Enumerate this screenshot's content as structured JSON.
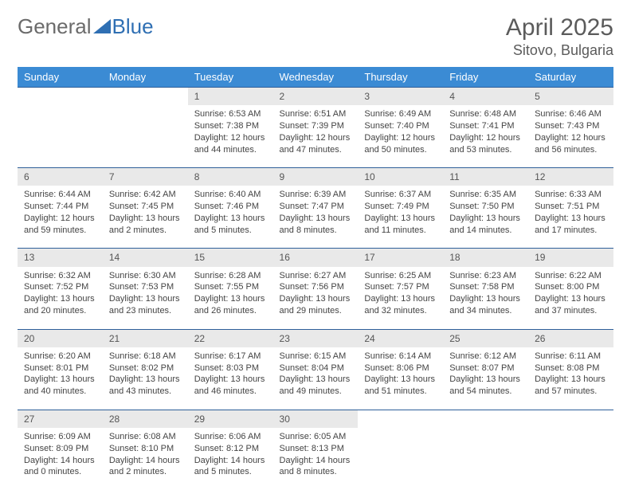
{
  "logo": {
    "part1": "General",
    "part2": "Blue",
    "color1": "#6b6b6b",
    "color2": "#2f6fb3",
    "triangle_fill": "#2f6fb3"
  },
  "header": {
    "title": "April 2025",
    "location": "Sitovo, Bulgaria"
  },
  "colors": {
    "header_bg": "#3b8bd4",
    "header_text": "#ffffff",
    "row_border": "#2e5f99",
    "daynum_bg": "#e9e9e9",
    "body_text": "#444444"
  },
  "weekdays": [
    "Sunday",
    "Monday",
    "Tuesday",
    "Wednesday",
    "Thursday",
    "Friday",
    "Saturday"
  ],
  "grid": {
    "rows": 5,
    "cols": 7,
    "leading_blanks": 2,
    "days_in_month": 30
  },
  "days": {
    "1": {
      "sunrise": "6:53 AM",
      "sunset": "7:38 PM",
      "daylight": "12 hours and 44 minutes."
    },
    "2": {
      "sunrise": "6:51 AM",
      "sunset": "7:39 PM",
      "daylight": "12 hours and 47 minutes."
    },
    "3": {
      "sunrise": "6:49 AM",
      "sunset": "7:40 PM",
      "daylight": "12 hours and 50 minutes."
    },
    "4": {
      "sunrise": "6:48 AM",
      "sunset": "7:41 PM",
      "daylight": "12 hours and 53 minutes."
    },
    "5": {
      "sunrise": "6:46 AM",
      "sunset": "7:43 PM",
      "daylight": "12 hours and 56 minutes."
    },
    "6": {
      "sunrise": "6:44 AM",
      "sunset": "7:44 PM",
      "daylight": "12 hours and 59 minutes."
    },
    "7": {
      "sunrise": "6:42 AM",
      "sunset": "7:45 PM",
      "daylight": "13 hours and 2 minutes."
    },
    "8": {
      "sunrise": "6:40 AM",
      "sunset": "7:46 PM",
      "daylight": "13 hours and 5 minutes."
    },
    "9": {
      "sunrise": "6:39 AM",
      "sunset": "7:47 PM",
      "daylight": "13 hours and 8 minutes."
    },
    "10": {
      "sunrise": "6:37 AM",
      "sunset": "7:49 PM",
      "daylight": "13 hours and 11 minutes."
    },
    "11": {
      "sunrise": "6:35 AM",
      "sunset": "7:50 PM",
      "daylight": "13 hours and 14 minutes."
    },
    "12": {
      "sunrise": "6:33 AM",
      "sunset": "7:51 PM",
      "daylight": "13 hours and 17 minutes."
    },
    "13": {
      "sunrise": "6:32 AM",
      "sunset": "7:52 PM",
      "daylight": "13 hours and 20 minutes."
    },
    "14": {
      "sunrise": "6:30 AM",
      "sunset": "7:53 PM",
      "daylight": "13 hours and 23 minutes."
    },
    "15": {
      "sunrise": "6:28 AM",
      "sunset": "7:55 PM",
      "daylight": "13 hours and 26 minutes."
    },
    "16": {
      "sunrise": "6:27 AM",
      "sunset": "7:56 PM",
      "daylight": "13 hours and 29 minutes."
    },
    "17": {
      "sunrise": "6:25 AM",
      "sunset": "7:57 PM",
      "daylight": "13 hours and 32 minutes."
    },
    "18": {
      "sunrise": "6:23 AM",
      "sunset": "7:58 PM",
      "daylight": "13 hours and 34 minutes."
    },
    "19": {
      "sunrise": "6:22 AM",
      "sunset": "8:00 PM",
      "daylight": "13 hours and 37 minutes."
    },
    "20": {
      "sunrise": "6:20 AM",
      "sunset": "8:01 PM",
      "daylight": "13 hours and 40 minutes."
    },
    "21": {
      "sunrise": "6:18 AM",
      "sunset": "8:02 PM",
      "daylight": "13 hours and 43 minutes."
    },
    "22": {
      "sunrise": "6:17 AM",
      "sunset": "8:03 PM",
      "daylight": "13 hours and 46 minutes."
    },
    "23": {
      "sunrise": "6:15 AM",
      "sunset": "8:04 PM",
      "daylight": "13 hours and 49 minutes."
    },
    "24": {
      "sunrise": "6:14 AM",
      "sunset": "8:06 PM",
      "daylight": "13 hours and 51 minutes."
    },
    "25": {
      "sunrise": "6:12 AM",
      "sunset": "8:07 PM",
      "daylight": "13 hours and 54 minutes."
    },
    "26": {
      "sunrise": "6:11 AM",
      "sunset": "8:08 PM",
      "daylight": "13 hours and 57 minutes."
    },
    "27": {
      "sunrise": "6:09 AM",
      "sunset": "8:09 PM",
      "daylight": "14 hours and 0 minutes."
    },
    "28": {
      "sunrise": "6:08 AM",
      "sunset": "8:10 PM",
      "daylight": "14 hours and 2 minutes."
    },
    "29": {
      "sunrise": "6:06 AM",
      "sunset": "8:12 PM",
      "daylight": "14 hours and 5 minutes."
    },
    "30": {
      "sunrise": "6:05 AM",
      "sunset": "8:13 PM",
      "daylight": "14 hours and 8 minutes."
    }
  },
  "labels": {
    "sunrise": "Sunrise: ",
    "sunset": "Sunset: ",
    "daylight": "Daylight: "
  }
}
